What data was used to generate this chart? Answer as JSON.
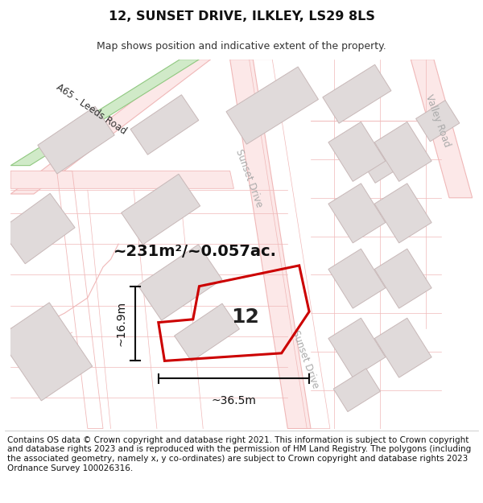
{
  "title": "12, SUNSET DRIVE, ILKLEY, LS29 8LS",
  "subtitle": "Map shows position and indicative extent of the property.",
  "title_fontsize": 11.5,
  "subtitle_fontsize": 9,
  "footer_text": "Contains OS data © Crown copyright and database right 2021. This information is subject to Crown copyright and database rights 2023 and is reproduced with the permission of HM Land Registry. The polygons (including the associated geometry, namely x, y co-ordinates) are subject to Crown copyright and database rights 2023 Ordnance Survey 100026316.",
  "footer_fontsize": 7.5,
  "map_bg": "#ffffff",
  "road_line_color": "#f0b8b8",
  "road_fill_color": "#fce8e8",
  "building_fill": "#e0dada",
  "building_edge": "#c8b8b8",
  "green_fill": "#d0eac8",
  "green_edge": "#90c880",
  "property_color": "#cc0000",
  "property_lw": 2.2,
  "dim_color": "#111111",
  "road_label_color": "#aaaaaa",
  "a65_label_color": "#333333",
  "property_label": "12",
  "area_label": "~231m²/~0.057ac.",
  "dim_width_label": "~36.5m",
  "dim_height_label": "~16.9m",
  "road_lw": 0.8,
  "road_thick_lw": 6,
  "building_lw": 0.7
}
